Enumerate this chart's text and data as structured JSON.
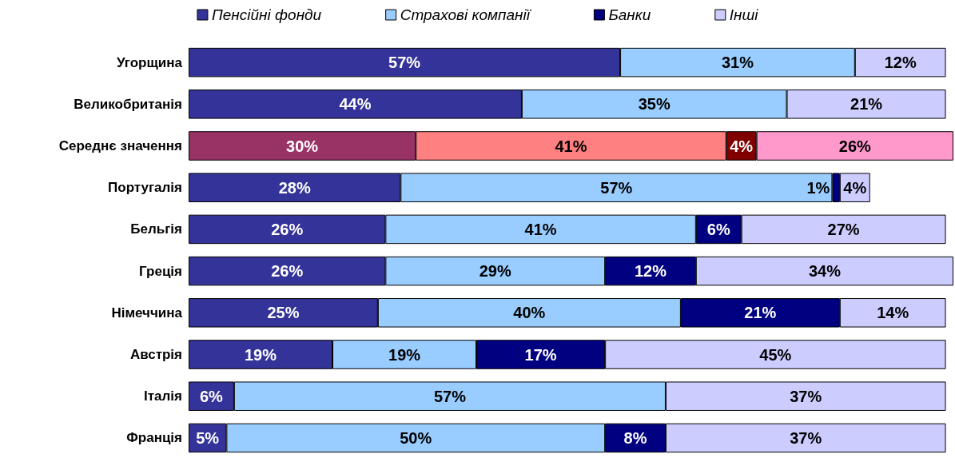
{
  "chart_data": {
    "type": "bar",
    "orientation": "horizontal",
    "stacked": true,
    "legend": "top",
    "grid": false,
    "categories": [
      "Угорщина",
      "Великобританія",
      "Середнє значення",
      "Португалія",
      "Бельгія",
      "Греція",
      "Німеччина",
      "Австрія",
      "Італія",
      "Франція"
    ],
    "series": [
      {
        "name": "Пенсійні фонди",
        "color": "#333399",
        "colors": [
          "#333399",
          "#333399",
          "#993366",
          "#333399",
          "#333399",
          "#333399",
          "#333399",
          "#333399",
          "#333399",
          "#333399"
        ],
        "values": [
          57,
          44,
          30,
          28,
          26,
          26,
          25,
          19,
          6,
          5
        ],
        "value_labels": [
          "57%",
          "44%",
          "30%",
          "28%",
          "26%",
          "26%",
          "25%",
          "19%",
          "6%",
          "5%"
        ]
      },
      {
        "name": "Страхові компанії",
        "color": "#99ccff",
        "colors": [
          "#99ccff",
          "#99ccff",
          "#ff8080",
          "#99ccff",
          "#99ccff",
          "#99ccff",
          "#99ccff",
          "#99ccff",
          "#99ccff",
          "#99ccff"
        ],
        "values": [
          31,
          35,
          41,
          57,
          41,
          29,
          40,
          19,
          57,
          50
        ],
        "value_labels": [
          "31%",
          "35%",
          "41%",
          "57%",
          "41%",
          "29%",
          "40%",
          "19%",
          "57%",
          "50%"
        ]
      },
      {
        "name": "Банки",
        "color": "#000080",
        "colors": [
          "#000080",
          "#000080",
          "#800000",
          "#000080",
          "#000080",
          "#000080",
          "#000080",
          "#000080",
          "#000080",
          "#000080"
        ],
        "values": [
          null,
          null,
          4,
          1,
          6,
          12,
          21,
          17,
          null,
          8
        ],
        "value_labels": [
          null,
          null,
          "4%",
          "1%",
          "6%",
          "12%",
          "21%",
          "17%",
          null,
          "8%"
        ]
      },
      {
        "name": "Інші",
        "color": "#ccccff",
        "colors": [
          "#ccccff",
          "#ccccff",
          "#ff99cc",
          "#ccccff",
          "#ccccff",
          "#ccccff",
          "#ccccff",
          "#ccccff",
          "#ccccff",
          "#ccccff"
        ],
        "values": [
          12,
          21,
          26,
          4,
          27,
          34,
          14,
          45,
          37,
          37
        ],
        "value_labels": [
          "12%",
          "21%",
          "26%",
          "4%",
          "27%",
          "34%",
          "14%",
          "45%",
          "37%",
          "37%"
        ]
      }
    ]
  }
}
